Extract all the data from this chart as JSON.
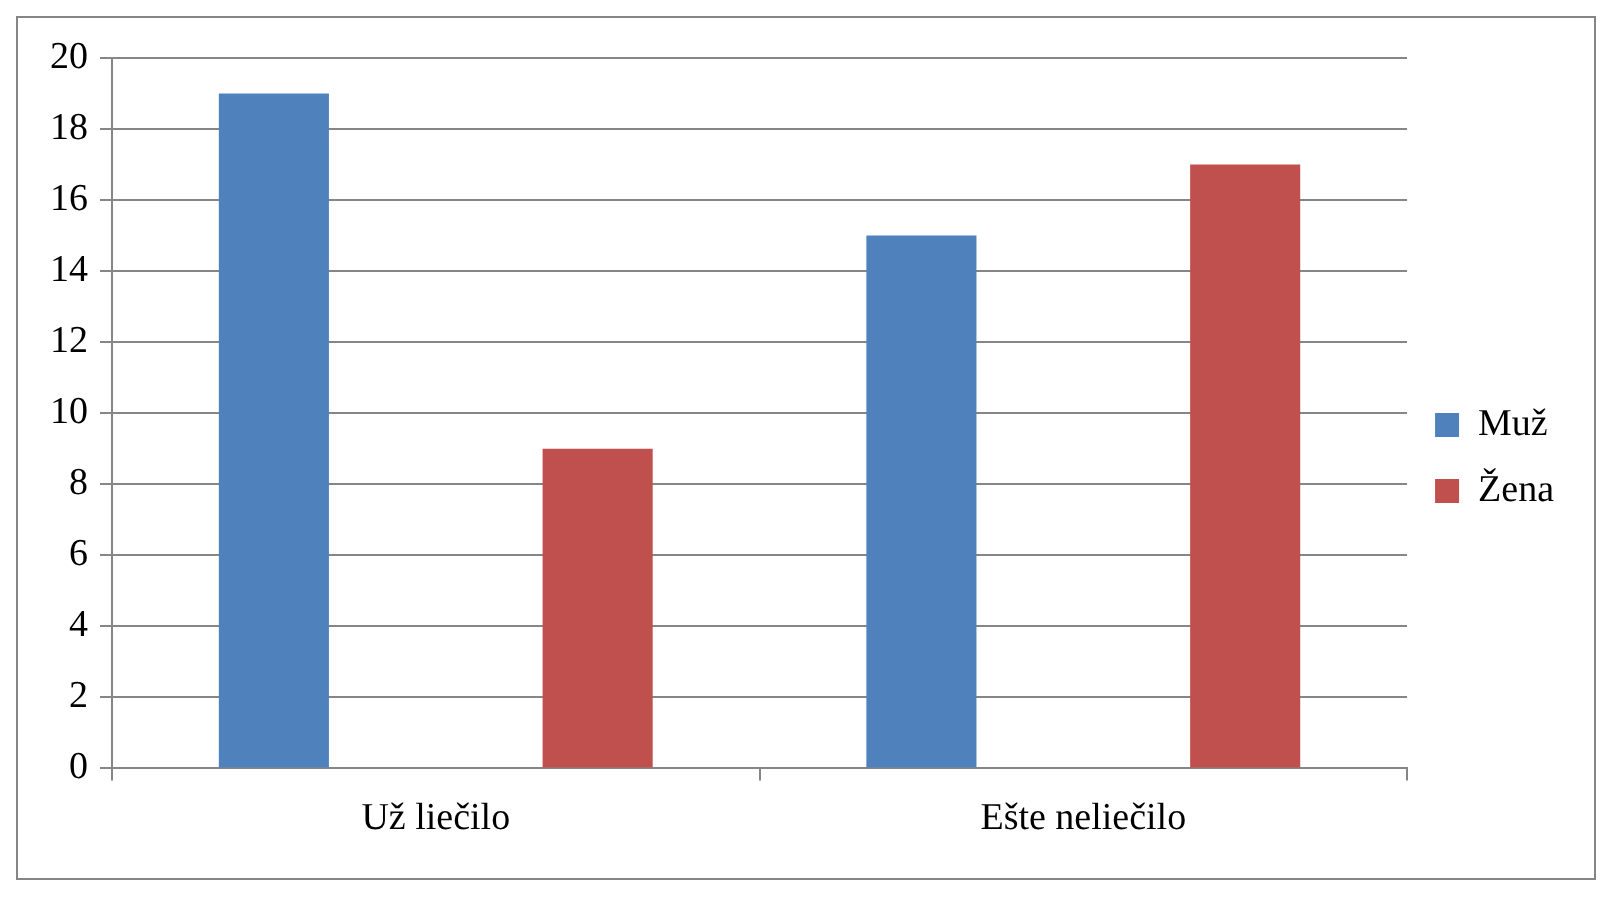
{
  "chart_data": {
    "type": "bar",
    "categories": [
      "Už liečilo",
      "Ešte neliečilo"
    ],
    "series": [
      {
        "name": "Muž",
        "color": "#4f81bd",
        "values": [
          19,
          15
        ]
      },
      {
        "name": "Žena",
        "color": "#c0504d",
        "values": [
          9,
          17
        ]
      }
    ],
    "ylim": [
      0,
      20
    ],
    "yticks": [
      0,
      2,
      4,
      6,
      8,
      10,
      12,
      14,
      16,
      18,
      20
    ],
    "grid": "y",
    "legend": "right"
  }
}
